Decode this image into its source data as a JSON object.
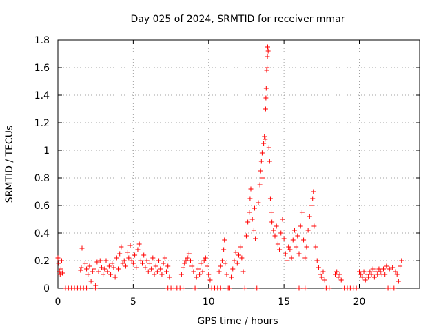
{
  "chart_data": {
    "type": "scatter",
    "title": "Day 025 of 2024, SRMTID for receiver mmar",
    "xlabel": "GPS time / hours",
    "ylabel": "SRMTID / TECUs",
    "xlim": [
      0,
      24
    ],
    "ylim": [
      0,
      1.8
    ],
    "xticks": [
      0,
      5,
      10,
      15,
      20
    ],
    "xtick_labels": [
      "0",
      "5",
      "10",
      "15",
      "20"
    ],
    "yticks": [
      0,
      0.2,
      0.4,
      0.6,
      0.8,
      1.0,
      1.2,
      1.4,
      1.6,
      1.8
    ],
    "ytick_labels": [
      "0",
      "0.2",
      "0.4",
      "0.6",
      "0.8",
      "1",
      "1.2",
      "1.4",
      "1.6",
      "1.8"
    ],
    "grid": true,
    "marker": "+",
    "color": "#ff0000",
    "series": [
      {
        "name": "SRMTID",
        "points": [
          [
            0.0,
            0.22
          ],
          [
            0.05,
            0.18
          ],
          [
            0.1,
            0.12
          ],
          [
            0.15,
            0.1
          ],
          [
            0.2,
            0.14
          ],
          [
            0.25,
            0.2
          ],
          [
            0.3,
            0.11
          ],
          [
            0.5,
            0.0
          ],
          [
            0.7,
            0.0
          ],
          [
            0.9,
            0.0
          ],
          [
            1.1,
            0.0
          ],
          [
            1.3,
            0.0
          ],
          [
            1.5,
            0.0
          ],
          [
            1.7,
            0.0
          ],
          [
            1.9,
            0.0
          ],
          [
            1.5,
            0.13
          ],
          [
            1.55,
            0.15
          ],
          [
            1.6,
            0.29
          ],
          [
            1.8,
            0.18
          ],
          [
            1.9,
            0.14
          ],
          [
            2.0,
            0.1
          ],
          [
            2.1,
            0.16
          ],
          [
            2.2,
            0.05
          ],
          [
            2.3,
            0.12
          ],
          [
            2.4,
            0.14
          ],
          [
            2.5,
            0.02
          ],
          [
            2.5,
            0.0
          ],
          [
            2.6,
            0.19
          ],
          [
            2.7,
            0.12
          ],
          [
            2.8,
            0.2
          ],
          [
            2.9,
            0.15
          ],
          [
            3.0,
            0.1
          ],
          [
            3.1,
            0.14
          ],
          [
            3.2,
            0.2
          ],
          [
            3.3,
            0.12
          ],
          [
            3.4,
            0.16
          ],
          [
            3.5,
            0.1
          ],
          [
            3.6,
            0.18
          ],
          [
            3.7,
            0.15
          ],
          [
            3.8,
            0.08
          ],
          [
            3.9,
            0.22
          ],
          [
            4.0,
            0.14
          ],
          [
            4.1,
            0.25
          ],
          [
            4.2,
            0.3
          ],
          [
            4.3,
            0.18
          ],
          [
            4.4,
            0.2
          ],
          [
            4.5,
            0.16
          ],
          [
            4.6,
            0.26
          ],
          [
            4.7,
            0.22
          ],
          [
            4.8,
            0.31
          ],
          [
            4.9,
            0.2
          ],
          [
            5.0,
            0.18
          ],
          [
            5.1,
            0.24
          ],
          [
            5.2,
            0.15
          ],
          [
            5.3,
            0.28
          ],
          [
            5.4,
            0.32
          ],
          [
            5.5,
            0.2
          ],
          [
            5.6,
            0.18
          ],
          [
            5.7,
            0.24
          ],
          [
            5.8,
            0.15
          ],
          [
            5.9,
            0.2
          ],
          [
            6.0,
            0.12
          ],
          [
            6.1,
            0.18
          ],
          [
            6.2,
            0.14
          ],
          [
            6.3,
            0.22
          ],
          [
            6.4,
            0.1
          ],
          [
            6.5,
            0.16
          ],
          [
            6.6,
            0.12
          ],
          [
            6.7,
            0.2
          ],
          [
            6.8,
            0.14
          ],
          [
            6.9,
            0.1
          ],
          [
            7.0,
            0.18
          ],
          [
            7.1,
            0.22
          ],
          [
            7.2,
            0.12
          ],
          [
            7.3,
            0.16
          ],
          [
            7.4,
            0.08
          ],
          [
            7.3,
            0.0
          ],
          [
            7.5,
            0.0
          ],
          [
            7.7,
            0.0
          ],
          [
            7.9,
            0.0
          ],
          [
            8.1,
            0.0
          ],
          [
            8.3,
            0.0
          ],
          [
            8.2,
            0.1
          ],
          [
            8.3,
            0.15
          ],
          [
            8.4,
            0.18
          ],
          [
            8.5,
            0.2
          ],
          [
            8.6,
            0.22
          ],
          [
            8.7,
            0.25
          ],
          [
            8.8,
            0.2
          ],
          [
            8.9,
            0.16
          ],
          [
            9.0,
            0.12
          ],
          [
            9.1,
            0.0
          ],
          [
            9.2,
            0.08
          ],
          [
            9.3,
            0.14
          ],
          [
            9.4,
            0.1
          ],
          [
            9.5,
            0.18
          ],
          [
            9.6,
            0.12
          ],
          [
            9.7,
            0.2
          ],
          [
            9.8,
            0.22
          ],
          [
            9.9,
            0.16
          ],
          [
            10.0,
            0.1
          ],
          [
            10.1,
            0.06
          ],
          [
            10.2,
            0.0
          ],
          [
            10.4,
            0.0
          ],
          [
            10.6,
            0.0
          ],
          [
            10.8,
            0.0
          ],
          [
            10.7,
            0.12
          ],
          [
            10.8,
            0.16
          ],
          [
            10.9,
            0.2
          ],
          [
            11.0,
            0.28
          ],
          [
            11.05,
            0.35
          ],
          [
            11.1,
            0.18
          ],
          [
            11.2,
            0.1
          ],
          [
            11.3,
            0.0
          ],
          [
            11.4,
            0.0
          ],
          [
            11.5,
            0.08
          ],
          [
            11.6,
            0.14
          ],
          [
            11.7,
            0.2
          ],
          [
            11.8,
            0.26
          ],
          [
            11.9,
            0.18
          ],
          [
            12.0,
            0.24
          ],
          [
            12.1,
            0.3
          ],
          [
            12.2,
            0.22
          ],
          [
            12.3,
            0.12
          ],
          [
            12.4,
            0.0
          ],
          [
            12.5,
            0.38
          ],
          [
            12.6,
            0.48
          ],
          [
            12.7,
            0.55
          ],
          [
            12.75,
            0.65
          ],
          [
            12.8,
            0.72
          ],
          [
            12.9,
            0.5
          ],
          [
            13.0,
            0.42
          ],
          [
            13.05,
            0.58
          ],
          [
            13.1,
            0.36
          ],
          [
            13.2,
            0.0
          ],
          [
            13.3,
            0.62
          ],
          [
            13.4,
            0.75
          ],
          [
            13.45,
            0.85
          ],
          [
            13.5,
            0.92
          ],
          [
            13.55,
            0.98
          ],
          [
            13.6,
            0.8
          ],
          [
            13.65,
            1.05
          ],
          [
            13.7,
            1.1
          ],
          [
            13.75,
            1.08
          ],
          [
            13.78,
            1.3
          ],
          [
            13.8,
            1.38
          ],
          [
            13.82,
            1.45
          ],
          [
            13.85,
            1.58
          ],
          [
            13.88,
            1.6
          ],
          [
            13.9,
            1.68
          ],
          [
            13.92,
            1.75
          ],
          [
            13.95,
            1.72
          ],
          [
            14.0,
            1.02
          ],
          [
            14.05,
            0.92
          ],
          [
            14.1,
            0.65
          ],
          [
            14.15,
            0.55
          ],
          [
            14.2,
            0.48
          ],
          [
            14.3,
            0.42
          ],
          [
            14.4,
            0.38
          ],
          [
            14.5,
            0.45
          ],
          [
            14.6,
            0.32
          ],
          [
            14.7,
            0.28
          ],
          [
            14.8,
            0.4
          ],
          [
            14.9,
            0.5
          ],
          [
            15.0,
            0.36
          ],
          [
            15.1,
            0.25
          ],
          [
            15.2,
            0.2
          ],
          [
            15.3,
            0.3
          ],
          [
            15.4,
            0.28
          ],
          [
            15.5,
            0.22
          ],
          [
            15.6,
            0.35
          ],
          [
            15.7,
            0.42
          ],
          [
            15.8,
            0.3
          ],
          [
            15.9,
            0.38
          ],
          [
            16.0,
            0.25
          ],
          [
            16.1,
            0.45
          ],
          [
            16.2,
            0.55
          ],
          [
            16.3,
            0.35
          ],
          [
            16.4,
            0.22
          ],
          [
            16.5,
            0.3
          ],
          [
            16.6,
            0.42
          ],
          [
            16.7,
            0.52
          ],
          [
            16.8,
            0.6
          ],
          [
            16.9,
            0.65
          ],
          [
            16.95,
            0.7
          ],
          [
            17.0,
            0.45
          ],
          [
            17.1,
            0.3
          ],
          [
            17.2,
            0.2
          ],
          [
            17.3,
            0.15
          ],
          [
            17.4,
            0.1
          ],
          [
            17.5,
            0.08
          ],
          [
            17.6,
            0.12
          ],
          [
            17.7,
            0.06
          ],
          [
            16.0,
            0.0
          ],
          [
            16.4,
            0.0
          ],
          [
            17.8,
            0.0
          ],
          [
            18.0,
            0.0
          ],
          [
            18.4,
            0.1
          ],
          [
            18.5,
            0.12
          ],
          [
            18.6,
            0.08
          ],
          [
            18.7,
            0.1
          ],
          [
            18.8,
            0.06
          ],
          [
            19.0,
            0.0
          ],
          [
            19.2,
            0.0
          ],
          [
            19.4,
            0.0
          ],
          [
            19.6,
            0.0
          ],
          [
            19.8,
            0.0
          ],
          [
            20.0,
            0.12
          ],
          [
            20.1,
            0.1
          ],
          [
            20.2,
            0.08
          ],
          [
            20.3,
            0.12
          ],
          [
            20.4,
            0.06
          ],
          [
            20.5,
            0.1
          ],
          [
            20.6,
            0.08
          ],
          [
            20.7,
            0.12
          ],
          [
            20.8,
            0.1
          ],
          [
            20.9,
            0.14
          ],
          [
            21.0,
            0.08
          ],
          [
            21.1,
            0.12
          ],
          [
            21.2,
            0.1
          ],
          [
            21.3,
            0.14
          ],
          [
            21.4,
            0.12
          ],
          [
            21.5,
            0.1
          ],
          [
            21.6,
            0.14
          ],
          [
            21.7,
            0.1
          ],
          [
            21.8,
            0.16
          ],
          [
            21.9,
            0.0
          ],
          [
            22.1,
            0.0
          ],
          [
            22.3,
            0.0
          ],
          [
            22.0,
            0.14
          ],
          [
            22.2,
            0.15
          ],
          [
            22.4,
            0.12
          ],
          [
            22.5,
            0.1
          ],
          [
            22.6,
            0.05
          ],
          [
            22.7,
            0.16
          ],
          [
            22.8,
            0.2
          ]
        ]
      }
    ]
  }
}
